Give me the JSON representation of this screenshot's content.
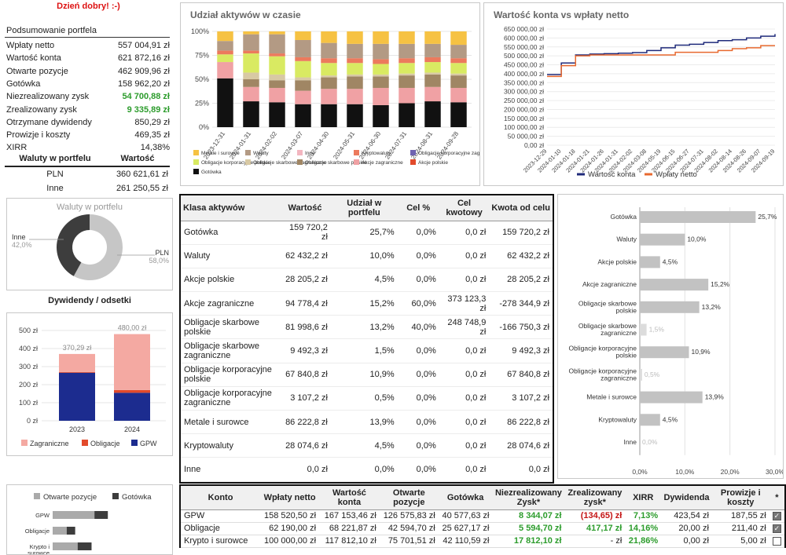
{
  "greeting": "Dzień dobry! :-)",
  "summary": {
    "title": "Podsumowanie portfela",
    "rows": [
      {
        "label": "Wpłaty netto",
        "value": "557 004,91 zł",
        "style": ""
      },
      {
        "label": "Wartość konta",
        "value": "621 872,16 zł",
        "style": ""
      },
      {
        "label": "Otwarte pozycje",
        "value": "462 909,96 zł",
        "style": ""
      },
      {
        "label": "Gotówka",
        "value": "158 962,20 zł",
        "style": ""
      },
      {
        "label": "Niezrealizowany zysk",
        "value": "54 700,88 zł",
        "style": "green"
      },
      {
        "label": "Zrealizowany zysk",
        "value": "9 335,89 zł",
        "style": "green"
      },
      {
        "label": "Otrzymane dywidendy",
        "value": "850,29 zł",
        "style": ""
      },
      {
        "label": "Prowizje i koszty",
        "value": "469,35 zł",
        "style": ""
      },
      {
        "label": "XIRR",
        "value": "14,38%",
        "style": ""
      }
    ]
  },
  "currencies": {
    "header_label": "Waluty w portfelu",
    "header_value": "Wartość",
    "rows": [
      {
        "label": "PLN",
        "value": "360 621,61 zł"
      },
      {
        "label": "Inne",
        "value": "261 250,55 zł"
      }
    ]
  },
  "donut": {
    "title": "Waluty w portfelu",
    "left_label": "Inne",
    "left_pct": "42,0%",
    "right_label": "PLN",
    "right_pct": "58,0%",
    "pln_fraction": 0.58,
    "colors": {
      "pln": "#c6c6c6",
      "inne": "#3d3d3d"
    }
  },
  "dividends_title": "Dywidendy / odsetki",
  "stacked_chart": {
    "title": "Udział aktywów w czasie",
    "y_ticks": [
      "100%",
      "75%",
      "50%",
      "25%",
      "0%"
    ],
    "categories": [
      "2023-12-31",
      "2024-01-31",
      "2024-02-02",
      "2024-03-07",
      "2024-04-30",
      "2024-05-31",
      "2024-06-30",
      "2024-07-31",
      "2024-08-31",
      "2024-09-28"
    ],
    "legend": [
      {
        "name": "Metale i surowce",
        "color": "#f6c243"
      },
      {
        "name": "Waluty",
        "color": "#b39a84"
      },
      {
        "name": "Inne",
        "color": "#f3b6c0"
      },
      {
        "name": "Kryptowaluty",
        "color": "#ec7a5d"
      },
      {
        "name": "Obligacje korporacyjne zagraniczne",
        "color": "#6f63b0"
      },
      {
        "name": "Obligacje korporacyjne polskie",
        "color": "#d9ea62"
      },
      {
        "name": "Obligacje skarbowe zagraniczne",
        "color": "#d8c9a4"
      },
      {
        "name": "Obligacje skarbowe polskie",
        "color": "#a08664"
      },
      {
        "name": "Akcje zagraniczne",
        "color": "#f0a1a4"
      },
      {
        "name": "Akcje polskie",
        "color": "#e24a2b"
      },
      {
        "name": "Gotówka",
        "color": "#111111"
      }
    ]
  },
  "line_chart": {
    "title": "Wartość konta vs wpłaty netto",
    "y_ticks": [
      "650 000,00 zł",
      "600 000,00 zł",
      "550 000,00 zł",
      "500 000,00 zł",
      "450 000,00 zł",
      "400 000,00 zł",
      "350 000,00 zł",
      "300 000,00 zł",
      "250 000,00 zł",
      "200 000,00 zł",
      "150 000,00 zł",
      "100 000,00 zł",
      "50 000,00 zł",
      "0,00 zł"
    ],
    "x_ticks": [
      "2023-12-29",
      "2024-01-10",
      "2024-01-18",
      "2024-01-21",
      "2024-01-26",
      "2024-01-31",
      "2024-02-02",
      "2024-03-08",
      "2024-05-19",
      "2024-06-15",
      "2024-06-27",
      "2024-07-31",
      "2024-08-02",
      "2024-08-14",
      "2024-08-26",
      "2024-09-07",
      "2024-09-19"
    ],
    "series": [
      {
        "name": "Wartość konta",
        "color": "#1f2a7a"
      },
      {
        "name": "Wpłaty netto",
        "color": "#e8692f"
      }
    ]
  },
  "chart_data": [
    {
      "type": "bar",
      "title": "Udział aktywów w czasie",
      "categories": [
        "2023-12-31",
        "2024-01-31",
        "2024-02-02",
        "2024-03-07",
        "2024-04-30",
        "2024-05-31",
        "2024-06-30",
        "2024-07-31",
        "2024-08-31",
        "2024-09-28"
      ],
      "ylim": [
        0,
        100
      ],
      "series": [
        {
          "name": "Gotówka",
          "values": [
            51,
            27,
            26,
            24,
            24,
            24,
            23,
            25,
            27,
            26
          ]
        },
        {
          "name": "Akcje polskie",
          "values": [
            0,
            0,
            0,
            0,
            0,
            0,
            0,
            0,
            0,
            0
          ]
        },
        {
          "name": "Akcje zagraniczne",
          "values": [
            17,
            15,
            15,
            14,
            16,
            16,
            18,
            16,
            15,
            15
          ]
        },
        {
          "name": "Obligacje skarbowe polskie",
          "values": [
            0,
            8,
            8,
            11,
            12,
            13,
            12,
            13,
            13,
            13
          ]
        },
        {
          "name": "Obligacje skarbowe zagraniczne",
          "values": [
            0,
            7,
            6,
            3,
            2,
            2,
            2,
            2,
            2,
            2
          ]
        },
        {
          "name": "Obligacje korporacyjne polskie",
          "values": [
            8,
            20,
            19,
            17,
            13,
            12,
            11,
            11,
            11,
            11
          ]
        },
        {
          "name": "Obligacje korporacyjne zagraniczne",
          "values": [
            0,
            0,
            0,
            0,
            0,
            0,
            0,
            0,
            0,
            0
          ]
        },
        {
          "name": "Kryptowaluty",
          "values": [
            4,
            3,
            3,
            4,
            5,
            5,
            5,
            5,
            5,
            5
          ]
        },
        {
          "name": "Inne",
          "values": [
            0,
            0,
            0,
            0,
            0,
            0,
            0,
            0,
            0,
            0
          ]
        },
        {
          "name": "Waluty",
          "values": [
            10,
            17,
            20,
            18,
            16,
            15,
            16,
            15,
            14,
            14
          ]
        },
        {
          "name": "Metale i surowce",
          "values": [
            10,
            3,
            3,
            9,
            12,
            13,
            13,
            13,
            13,
            14
          ]
        }
      ]
    },
    {
      "type": "line",
      "title": "Wartość konta vs wpłaty netto",
      "ylim": [
        0,
        650000
      ],
      "x_index": [
        0,
        1,
        2,
        3,
        4,
        5,
        6,
        7,
        8,
        9,
        10,
        11,
        12,
        13,
        14,
        15,
        16
      ],
      "series": [
        {
          "name": "Wartość konta",
          "values": [
            395000,
            460000,
            505000,
            510000,
            512000,
            515000,
            518000,
            530000,
            545000,
            560000,
            565000,
            575000,
            585000,
            590000,
            600000,
            610000,
            622000
          ]
        },
        {
          "name": "Wpłaty netto",
          "values": [
            385000,
            445000,
            500000,
            505000,
            505000,
            505000,
            505000,
            505000,
            505000,
            520000,
            520000,
            520000,
            530000,
            540000,
            545000,
            557000,
            557000
          ]
        }
      ]
    },
    {
      "type": "bar",
      "title": "Dywidendy / odsetki",
      "categories": [
        "2023",
        "2024"
      ],
      "ylim": [
        0,
        500
      ],
      "y_ticks": [
        "500 zł",
        "400 zł",
        "300 zł",
        "200 zł",
        "100 zł",
        "0 zł"
      ],
      "totals": [
        "370,29 zł",
        "480,00 zł"
      ],
      "series": [
        {
          "name": "Zagraniczne",
          "color": "#f4a9a2",
          "values": [
            100,
            310
          ]
        },
        {
          "name": "Obligacje",
          "color": "#e24a2b",
          "values": [
            4,
            15
          ]
        },
        {
          "name": "GPW",
          "color": "#1c2c8f",
          "values": [
            266,
            155
          ]
        }
      ]
    },
    {
      "type": "bar",
      "orientation": "horizontal",
      "categories": [
        "Gotówka",
        "Waluty",
        "Akcje polskie",
        "Akcje zagraniczne",
        "Obligacje skarbowe polskie",
        "Obligacje skarbowe zagraniczne",
        "Obligacje korporacyjne polskie",
        "Obligacje korporacyjne zagraniczne",
        "Metale i surowce",
        "Kryptowaluty",
        "Inne"
      ],
      "values": [
        25.7,
        10.0,
        4.5,
        15.2,
        13.2,
        1.5,
        10.9,
        0.5,
        13.9,
        4.5,
        0.0
      ],
      "labels": [
        "25,7%",
        "10,0%",
        "4,5%",
        "15,2%",
        "13,2%",
        "1,5%",
        "10,9%",
        "0,5%",
        "13,9%",
        "4,5%",
        "0,0%"
      ],
      "x_ticks": [
        "0,0%",
        "10,0%",
        "20,0%",
        "30,0%"
      ],
      "xlim": [
        0,
        30
      ]
    },
    {
      "type": "bar",
      "orientation": "horizontal",
      "categories": [
        "GPW",
        "Obligacje",
        "Krypto i surowce"
      ],
      "series": [
        {
          "name": "Otwarte pozycje",
          "values": [
            126575.83,
            42594.7,
            75701.51
          ]
        },
        {
          "name": "Gotówka",
          "values": [
            40577.63,
            25627.17,
            42110.59
          ]
        }
      ]
    }
  ],
  "assets_table": {
    "headers": [
      "Klasa aktywów",
      "Wartość",
      "Udział w portfelu",
      "Cel %",
      "Cel kwotowy",
      "Kwota od celu"
    ],
    "rows": [
      [
        "Gotówka",
        "159 720,2 zł",
        "25,7%",
        "0,0%",
        "0,0 zł",
        "159 720,2 zł"
      ],
      [
        "Waluty",
        "62 432,2 zł",
        "10,0%",
        "0,0%",
        "0,0 zł",
        "62 432,2 zł"
      ],
      [
        "Akcje polskie",
        "28 205,2 zł",
        "4,5%",
        "0,0%",
        "0,0 zł",
        "28 205,2 zł"
      ],
      [
        "Akcje zagraniczne",
        "94 778,4 zł",
        "15,2%",
        "60,0%",
        "373 123,3 zł",
        "-278 344,9 zł"
      ],
      [
        "Obligacje skarbowe polskie",
        "81 998,6 zł",
        "13,2%",
        "40,0%",
        "248 748,9 zł",
        "-166 750,3 zł"
      ],
      [
        "Obligacje skarbowe zagraniczne",
        "9 492,3 zł",
        "1,5%",
        "0,0%",
        "0,0 zł",
        "9 492,3 zł"
      ],
      [
        "Obligacje korporacyjne polskie",
        "67 840,8 zł",
        "10,9%",
        "0,0%",
        "0,0 zł",
        "67 840,8 zł"
      ],
      [
        "Obligacje korporacyjne zagraniczne",
        "3 107,2 zł",
        "0,5%",
        "0,0%",
        "0,0 zł",
        "3 107,2 zł"
      ],
      [
        "Metale i surowce",
        "86 222,8 zł",
        "13,9%",
        "0,0%",
        "0,0 zł",
        "86 222,8 zł"
      ],
      [
        "Kryptowaluty",
        "28 074,6 zł",
        "4,5%",
        "0,0%",
        "0,0 zł",
        "28 074,6 zł"
      ],
      [
        "Inne",
        "0,0 zł",
        "0,0%",
        "0,0%",
        "0,0 zł",
        "0,0 zł"
      ]
    ]
  },
  "accounts_chart": {
    "legend": [
      {
        "name": "Otwarte pozycje",
        "color": "#aaaaaa"
      },
      {
        "name": "Gotówka",
        "color": "#3d3d3d"
      }
    ],
    "categories": [
      "GPW",
      "Obligacje",
      "Krypto i surowce"
    ]
  },
  "accounts_table": {
    "headers": [
      "Konto",
      "Wpłaty netto",
      "Wartość konta",
      "Otwarte pozycje",
      "Gotówka",
      "Niezrealizowany Zysk*",
      "Zrealizowany zysk*",
      "XIRR",
      "Dywidenda",
      "Prowizje i koszty",
      "*"
    ],
    "rows": [
      {
        "cells": [
          "GPW",
          "158 520,50 zł",
          "167 153,46 zł",
          "126 575,83 zł",
          "40 577,63 zł",
          "8 344,07 zł",
          "(134,65) zł",
          "7,13%",
          "423,54 zł",
          "187,55 zł"
        ],
        "styles": [
          "",
          "",
          "",
          "",
          "",
          "green",
          "red",
          "green",
          "",
          ""
        ],
        "checked": true
      },
      {
        "cells": [
          "Obligacje",
          "62 190,00 zł",
          "68 221,87 zł",
          "42 594,70 zł",
          "25 627,17 zł",
          "5 594,70 zł",
          "417,17 zł",
          "14,16%",
          "20,00 zł",
          "211,40 zł"
        ],
        "styles": [
          "",
          "",
          "",
          "",
          "",
          "green",
          "green",
          "green",
          "",
          ""
        ],
        "checked": true
      },
      {
        "cells": [
          "Krypto i surowce",
          "100 000,00 zł",
          "117 812,10 zł",
          "75 701,51 zł",
          "42 110,59 zł",
          "17 812,10 zł",
          "- zł",
          "21,86%",
          "0,00 zł",
          "5,00 zł"
        ],
        "styles": [
          "",
          "",
          "",
          "",
          "",
          "green",
          "",
          "green",
          "",
          ""
        ],
        "checked": false
      }
    ]
  }
}
